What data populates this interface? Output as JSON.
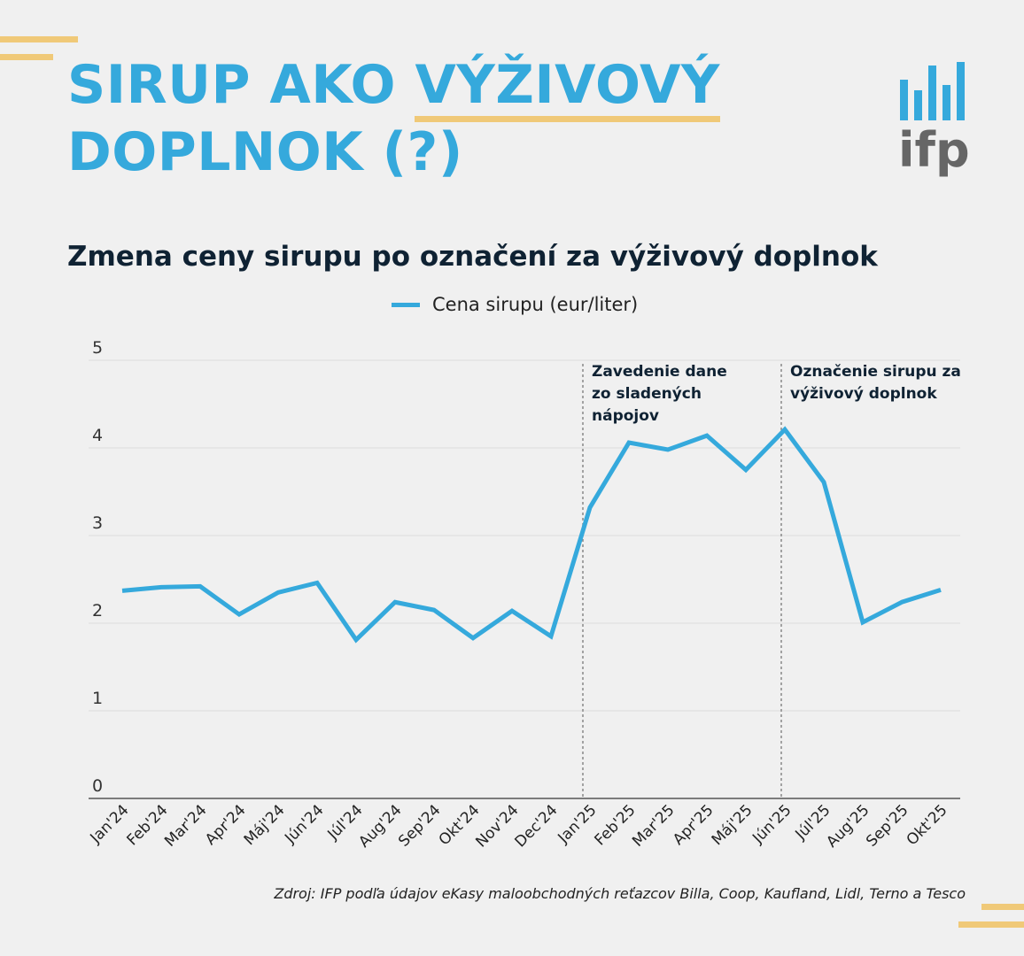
{
  "header": {
    "title_part1": "SIRUP AKO ",
    "title_highlight": "VÝŽIVOVÝ",
    "title_part2": "DOPLNOK (?)",
    "logo_text": "ifp"
  },
  "colors": {
    "accent": "#35a9dc",
    "highlight": "#f0c978",
    "text": "#0f2233",
    "logo_gray": "#666666"
  },
  "source": "Zdroj: IFP podľa údajov eKasy maloobchodných reťazcov Billa, Coop, Kaufland, Lidl, Terno a Tesco",
  "chart_data": {
    "type": "line",
    "title": "Zmena ceny sirupu po označení za výživový doplnok",
    "categories": [
      "Jan'24",
      "Feb'24",
      "Mar'24",
      "Apr'24",
      "Máj'24",
      "Jún'24",
      "Júl'24",
      "Aug'24",
      "Sep'24",
      "Okt'24",
      "Nov'24",
      "Dec'24",
      "Jan'25",
      "Feb'25",
      "Mar'25",
      "Apr'25",
      "Máj'25",
      "Jún'25",
      "Júl'25",
      "Aug'25",
      "Sep'25",
      "Okt'25"
    ],
    "series": [
      {
        "name": "Cena sirupu (eur/liter)",
        "color": "#35a9dc",
        "values": [
          2.37,
          2.41,
          2.42,
          2.1,
          2.35,
          2.46,
          1.81,
          2.24,
          2.15,
          1.83,
          2.14,
          1.85,
          3.32,
          4.06,
          3.98,
          4.14,
          3.75,
          4.21,
          3.61,
          2.01,
          2.24,
          2.38
        ]
      }
    ],
    "ylim": [
      0,
      5
    ],
    "yticks": [
      "0",
      "1",
      "2",
      "3",
      "4",
      "5"
    ],
    "grid": true,
    "legend": "top-center",
    "annotations": [
      {
        "at": "Jan'25",
        "lines": [
          "Zavedenie dane",
          "zo sladených",
          "nápojov"
        ]
      },
      {
        "at": "Jún'25",
        "lines": [
          "Označenie sirupu za",
          "výživový doplnok"
        ]
      }
    ]
  }
}
